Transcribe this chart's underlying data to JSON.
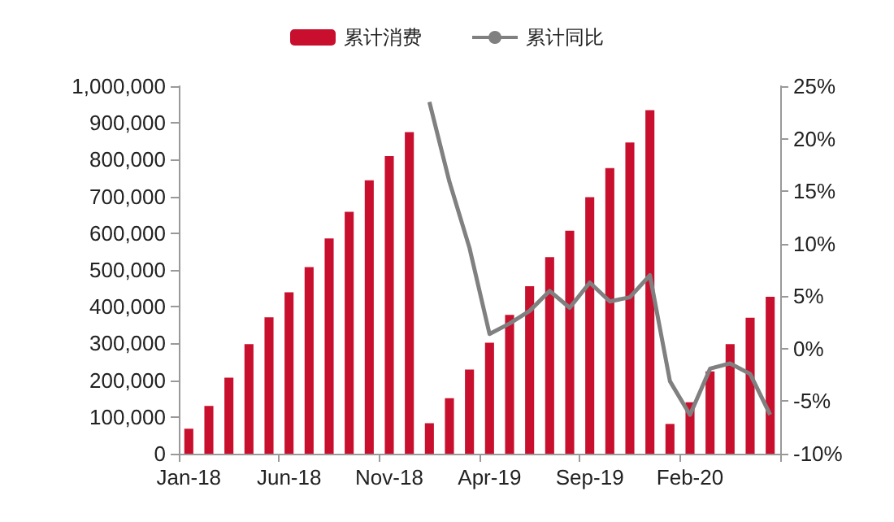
{
  "chart_data": {
    "type": "bar",
    "categories": [
      "Jan-18",
      null,
      null,
      null,
      null,
      "Jun-18",
      null,
      null,
      null,
      null,
      "Nov-18",
      null,
      null,
      null,
      null,
      "Apr-19",
      null,
      null,
      null,
      null,
      "Sep-19",
      null,
      null,
      null,
      null,
      "Feb-20",
      null,
      null,
      null,
      null
    ],
    "series": [
      {
        "name": "累计消费",
        "color": "#c8102e",
        "values": [
          68000,
          130000,
          207000,
          298000,
          371000,
          439000,
          508000,
          586000,
          658000,
          744000,
          810000,
          875000,
          83000,
          151000,
          229000,
          302000,
          378000,
          456000,
          535000,
          607000,
          698000,
          777000,
          847000,
          935000,
          81000,
          140000,
          224000,
          298000,
          370000,
          427000
        ]
      },
      {
        "name": "累计同比",
        "type": "line",
        "axis": "y2",
        "color": "#808080",
        "values": [
          null,
          null,
          null,
          null,
          null,
          null,
          null,
          null,
          null,
          null,
          null,
          null,
          23.5,
          15.9,
          9.6,
          1.4,
          2.4,
          3.6,
          5.5,
          3.9,
          6.3,
          4.5,
          4.9,
          7.0,
          -3.1,
          -6.3,
          -1.9,
          -1.4,
          -2.4,
          -6.3
        ]
      }
    ],
    "ylim": [
      0,
      1000000
    ],
    "yticks": [
      0,
      {
        "value": 100000,
        "label": "100,000"
      },
      {
        "value": 200000,
        "label": "200,000"
      },
      {
        "value": 300000,
        "label": "300,000"
      },
      {
        "value": 400000,
        "label": "400,000"
      },
      {
        "value": 500000,
        "label": "500,000"
      },
      {
        "value": 600000,
        "label": "600,000"
      },
      {
        "value": 700000,
        "label": "700,000"
      },
      {
        "value": 800000,
        "label": "800,000"
      },
      {
        "value": 900000,
        "label": "900,000"
      },
      {
        "value": 1000000,
        "label": "1,000,000"
      }
    ],
    "y2lim": [
      -10,
      25
    ],
    "y2ticks": [
      {
        "value": -10,
        "label": "-10%"
      },
      {
        "value": -5,
        "label": "-5%"
      },
      {
        "value": 0,
        "label": "0%"
      },
      {
        "value": 5,
        "label": "5%"
      },
      {
        "value": 10,
        "label": "10%"
      },
      {
        "value": 15,
        "label": "15%"
      },
      {
        "value": 20,
        "label": "20%"
      },
      {
        "value": 25,
        "label": "25%"
      }
    ],
    "legend": "top",
    "grid": false,
    "marker": "none"
  }
}
